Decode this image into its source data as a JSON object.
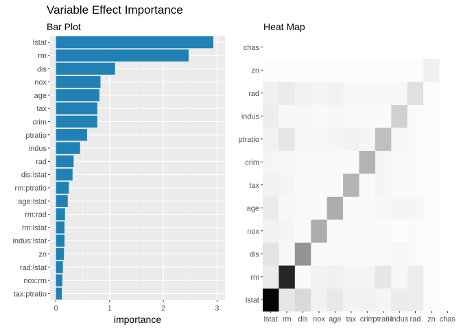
{
  "title": "Variable Effect Importance",
  "chart_data": [
    {
      "type": "bar",
      "orientation": "horizontal",
      "title": "Bar Plot",
      "xlabel": "importance",
      "ylabel": "",
      "xlim": [
        0,
        3.1
      ],
      "xticks": [
        "0",
        "1",
        "2",
        "3"
      ],
      "bar_color": "#2181B5",
      "panel_color": "#EBEBEB",
      "categories": [
        "lstat",
        "rm",
        "dis",
        "nox",
        "age",
        "tax",
        "crim",
        "ptratio",
        "indus",
        "rad",
        "dis:lstat",
        "rm:ptratio",
        "age:lstat",
        "rm:rad",
        "rm:lstat",
        "indus:lstat",
        "zn",
        "rad:lstat",
        "nox:rm",
        "tax:ptratio"
      ],
      "values": [
        2.93,
        2.47,
        1.1,
        0.83,
        0.81,
        0.77,
        0.77,
        0.58,
        0.45,
        0.33,
        0.31,
        0.24,
        0.22,
        0.17,
        0.16,
        0.16,
        0.15,
        0.13,
        0.12,
        0.11
      ]
    },
    {
      "type": "heatmap",
      "title": "Heat Map",
      "x_categories": [
        "lstat",
        "rm",
        "dis",
        "nox",
        "age",
        "tax",
        "crim",
        "ptratio",
        "indus",
        "rad",
        "zn",
        "chas"
      ],
      "y_categories": [
        "lstat",
        "rm",
        "dis",
        "nox",
        "age",
        "tax",
        "crim",
        "ptratio",
        "indus",
        "rad",
        "zn",
        "chas"
      ],
      "color_low": "#FFFFFF",
      "color_high": "#000000",
      "values": [
        [
          0.98,
          0.1,
          0.15,
          0.05,
          0.09,
          0.05,
          0.05,
          0.04,
          0.08,
          0.07,
          0.01,
          0.0
        ],
        [
          0.08,
          0.85,
          0.02,
          0.05,
          0.06,
          0.04,
          0.04,
          0.1,
          0.03,
          0.07,
          0.01,
          0.0
        ],
        [
          0.11,
          0.03,
          0.42,
          0.02,
          0.02,
          0.02,
          0.02,
          0.02,
          0.03,
          0.02,
          0.01,
          0.0
        ],
        [
          0.05,
          0.04,
          0.02,
          0.32,
          0.02,
          0.02,
          0.02,
          0.02,
          0.01,
          0.02,
          0.01,
          0.0
        ],
        [
          0.08,
          0.03,
          0.02,
          0.02,
          0.32,
          0.02,
          0.02,
          0.03,
          0.04,
          0.04,
          0.01,
          0.0
        ],
        [
          0.05,
          0.04,
          0.02,
          0.02,
          0.02,
          0.3,
          0.02,
          0.04,
          0.02,
          0.02,
          0.01,
          0.0
        ],
        [
          0.04,
          0.03,
          0.02,
          0.02,
          0.02,
          0.02,
          0.3,
          0.04,
          0.02,
          0.02,
          0.01,
          0.0
        ],
        [
          0.05,
          0.1,
          0.03,
          0.03,
          0.04,
          0.05,
          0.04,
          0.25,
          0.03,
          0.02,
          0.01,
          0.0
        ],
        [
          0.07,
          0.03,
          0.03,
          0.02,
          0.03,
          0.02,
          0.02,
          0.02,
          0.18,
          0.02,
          0.01,
          0.0
        ],
        [
          0.06,
          0.08,
          0.05,
          0.04,
          0.05,
          0.03,
          0.03,
          0.03,
          0.03,
          0.12,
          0.01,
          0.0
        ],
        [
          0.01,
          0.01,
          0.01,
          0.01,
          0.01,
          0.01,
          0.01,
          0.01,
          0.01,
          0.01,
          0.06,
          0.0
        ],
        [
          0.0,
          0.0,
          0.0,
          0.0,
          0.0,
          0.0,
          0.0,
          0.0,
          0.0,
          0.0,
          0.0,
          0.0
        ]
      ]
    }
  ]
}
